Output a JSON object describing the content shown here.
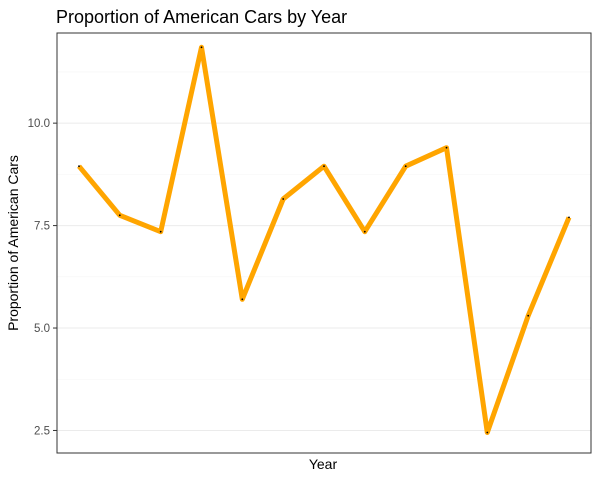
{
  "chart_data": {
    "type": "line",
    "title": "Proportion of American Cars by Year",
    "xlabel": "Year",
    "ylabel": "Proportion of American Cars",
    "ylim": [
      1.95,
      12.2
    ],
    "yticks": [
      2.5,
      5.0,
      7.5,
      10.0
    ],
    "yticklabels": [
      "2.5",
      "5.0",
      "7.5",
      "10.0"
    ],
    "x": [
      1,
      2,
      3,
      4,
      5,
      6,
      7,
      8,
      9,
      10,
      11,
      12,
      13
    ],
    "series": [
      {
        "values": [
          8.95,
          7.75,
          7.35,
          11.85,
          5.7,
          8.15,
          8.95,
          7.35,
          8.95,
          9.4,
          2.45,
          5.3,
          7.7
        ],
        "color": "#FFA500"
      }
    ],
    "grid": true,
    "legend": "none"
  }
}
